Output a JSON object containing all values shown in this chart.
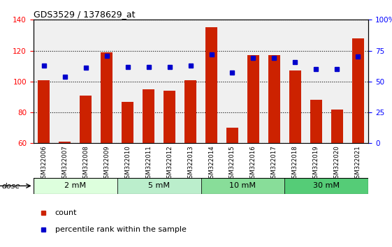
{
  "title": "GDS3529 / 1378629_at",
  "samples": [
    "GSM322006",
    "GSM322007",
    "GSM322008",
    "GSM322009",
    "GSM322010",
    "GSM322011",
    "GSM322012",
    "GSM322013",
    "GSM322014",
    "GSM322015",
    "GSM322016",
    "GSM322017",
    "GSM322018",
    "GSM322019",
    "GSM322020",
    "GSM322021"
  ],
  "counts": [
    101,
    61,
    91,
    119,
    87,
    95,
    94,
    101,
    135,
    70,
    117,
    117,
    107,
    88,
    82,
    128
  ],
  "percentiles_right": [
    63,
    54,
    61,
    71,
    62,
    62,
    62,
    63,
    72,
    57,
    69,
    69,
    66,
    60,
    60,
    70
  ],
  "ylim_left": [
    60,
    140
  ],
  "ylim_right": [
    0,
    100
  ],
  "yticks_left": [
    60,
    80,
    100,
    120,
    140
  ],
  "yticks_right": [
    0,
    25,
    50,
    75,
    100
  ],
  "dose_groups": [
    {
      "label": "2 mM",
      "start": 0,
      "end": 3,
      "color": "#ddffdd"
    },
    {
      "label": "5 mM",
      "start": 4,
      "end": 7,
      "color": "#bbeecc"
    },
    {
      "label": "10 mM",
      "start": 8,
      "end": 11,
      "color": "#88dd99"
    },
    {
      "label": "30 mM",
      "start": 12,
      "end": 15,
      "color": "#55cc77"
    }
  ],
  "bar_color": "#cc2200",
  "dot_color": "#0000cc",
  "bar_bottom": 60,
  "label_count": "count",
  "label_percentile": "percentile rank within the sample",
  "dose_label": "dose"
}
